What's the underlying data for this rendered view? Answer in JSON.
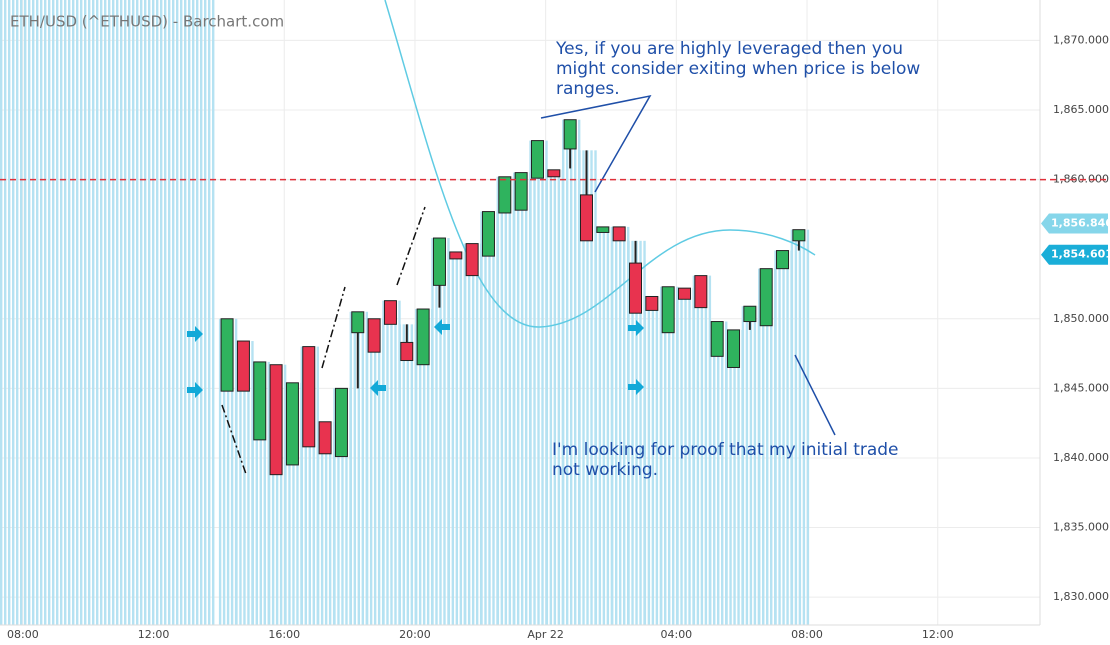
{
  "chart_data": {
    "type": "candlestick",
    "title": "ETH/USD (^ETHUSD) - Barchart.com",
    "x": [
      6.25,
      6.75,
      7.25,
      7.75,
      8.25,
      8.75,
      9.25,
      9.75,
      10.25,
      10.75,
      11.25,
      11.75,
      12.25,
      12.75,
      13.25,
      13.75,
      14.25,
      14.75,
      15.25,
      15.75,
      16.25,
      16.75,
      17.25,
      17.75,
      18.25,
      18.75,
      19.25,
      19.75,
      20.25,
      20.75,
      21.25,
      21.75,
      22.25,
      22.75,
      23.25,
      23.75
    ],
    "open": [
      1844.8,
      1848.4,
      1841.3,
      1846.7,
      1839.5,
      1848.0,
      1842.6,
      1840.1,
      1849.0,
      1850.0,
      1851.3,
      1848.3,
      1846.7,
      1852.4,
      1854.8,
      1855.4,
      1854.5,
      1857.6,
      1857.8,
      1860.1,
      1860.7,
      1862.2,
      1858.9,
      1856.2,
      1856.6,
      1854.0,
      1851.6,
      1849.0,
      1852.2,
      1853.1,
      1847.3,
      1846.5,
      1849.8,
      1849.5,
      1853.6,
      1855.6
    ],
    "high": [
      1850.0,
      1848.4,
      1846.9,
      1846.7,
      1845.4,
      1848.0,
      1842.6,
      1845.0,
      1850.5,
      1850.0,
      1851.3,
      1849.6,
      1850.7,
      1855.8,
      1854.8,
      1855.4,
      1857.7,
      1860.2,
      1860.5,
      1862.8,
      1860.7,
      1864.3,
      1862.1,
      1856.6,
      1856.6,
      1855.6,
      1851.6,
      1852.3,
      1852.2,
      1853.1,
      1849.8,
      1849.2,
      1850.9,
      1853.6,
      1854.9,
      1856.4
    ],
    "low": [
      1844.8,
      1844.8,
      1841.3,
      1838.8,
      1839.5,
      1840.8,
      1840.3,
      1840.1,
      1845.0,
      1847.6,
      1849.6,
      1847.0,
      1846.7,
      1850.8,
      1854.3,
      1853.1,
      1854.5,
      1857.6,
      1857.8,
      1860.1,
      1860.2,
      1860.8,
      1855.6,
      1856.2,
      1855.6,
      1850.4,
      1850.6,
      1849.0,
      1851.4,
      1850.8,
      1847.3,
      1846.5,
      1849.2,
      1849.5,
      1853.6,
      1854.9
    ],
    "close": [
      1850.0,
      1844.8,
      1846.9,
      1838.8,
      1845.4,
      1840.8,
      1840.3,
      1845.0,
      1850.5,
      1847.6,
      1849.6,
      1847.0,
      1850.7,
      1855.8,
      1854.3,
      1853.1,
      1857.7,
      1860.2,
      1860.5,
      1862.8,
      1860.2,
      1864.3,
      1855.6,
      1856.6,
      1855.6,
      1850.4,
      1850.6,
      1852.3,
      1851.4,
      1850.8,
      1849.8,
      1849.2,
      1850.9,
      1853.6,
      1854.9,
      1856.4
    ],
    "up_color": "#2fb35e",
    "down_color": "#e8334f",
    "xlim": [
      -0.7,
      31.13
    ],
    "xticks": [
      {
        "value": 0,
        "label": "08:00"
      },
      {
        "value": 4,
        "label": "12:00"
      },
      {
        "value": 8,
        "label": "16:00"
      },
      {
        "value": 12,
        "label": "20:00"
      },
      {
        "value": 16,
        "label": "Apr 22"
      },
      {
        "value": 20,
        "label": "04:00"
      },
      {
        "value": 24,
        "label": "08:00"
      },
      {
        "value": 28,
        "label": "12:00"
      }
    ],
    "ylim": [
      1828.0,
      1872.9
    ],
    "yticks": [
      {
        "value": 1830,
        "label": "1,830.000"
      },
      {
        "value": 1835,
        "label": "1,835.000"
      },
      {
        "value": 1840,
        "label": "1,840.000"
      },
      {
        "value": 1845,
        "label": "1,845.000"
      },
      {
        "value": 1850,
        "label": "1,850.000"
      },
      {
        "value": 1860,
        "label": "1,860.000"
      },
      {
        "value": 1865,
        "label": "1,865.000"
      },
      {
        "value": 1870,
        "label": "1,870.000"
      }
    ],
    "grid": true,
    "reference_line": {
      "value": 1860,
      "color": "#e0303a"
    },
    "price_labels": [
      {
        "value": 1856.846,
        "label": "1,856.846",
        "color": "#86d6ea"
      },
      {
        "value": 1854.601,
        "label": "1,854.601",
        "color": "#1aaed8"
      }
    ],
    "annotations": [
      {
        "lines": [
          "Yes, if you are highly leveraged then you",
          "might consider exiting when price is below",
          "ranges."
        ]
      },
      {
        "lines": [
          "I'm looking for proof that my initial trade",
          "not working."
        ]
      }
    ]
  }
}
